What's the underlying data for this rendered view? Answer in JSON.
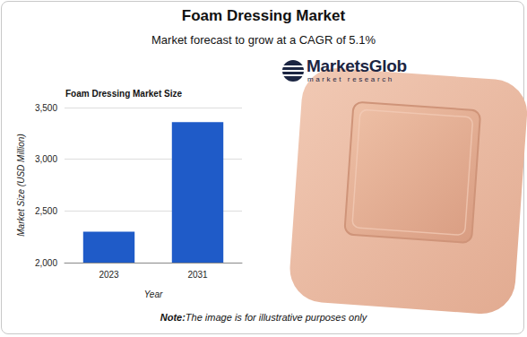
{
  "page": {
    "title": "Foam Dressing Market",
    "subtitle": "Market forecast to grow at a CAGR of 5.1%",
    "logo": {
      "name": "MarketsGlob",
      "tagline": "market research"
    },
    "note": {
      "label": "Note:",
      "text": "The image is for illustrative purposes only"
    }
  },
  "chart_data": {
    "type": "bar",
    "title": "Foam Dressing Market Size",
    "x_label": "Year",
    "y_label": "Market Size (USD Million)",
    "categories": [
      "2023",
      "2031"
    ],
    "values": [
      2300,
      3360
    ],
    "color": "#1f5bc8",
    "ylim": [
      2000,
      3500
    ],
    "yticks": [
      {
        "value": 2000,
        "label": "2,000"
      },
      {
        "value": 2500,
        "label": "2,500"
      },
      {
        "value": 3000,
        "label": "3,000"
      },
      {
        "value": 3500,
        "label": "3,500"
      }
    ],
    "grid": true
  }
}
